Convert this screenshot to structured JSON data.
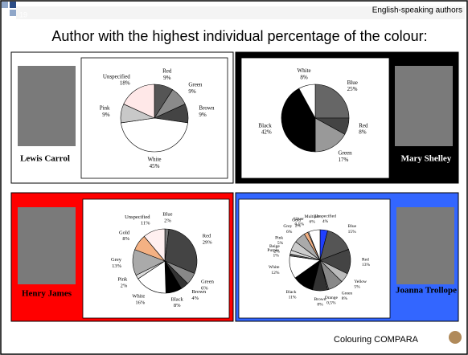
{
  "slide_number": "19",
  "header": "English-speaking authors",
  "title": "Author with the highest individual percentage of the colour:",
  "footer": "Colouring COMPARA",
  "chart_data": [
    {
      "type": "pie",
      "author": "Lewis Carrol",
      "categories": [
        "Red",
        "Green",
        "Brown",
        "White",
        "Pink",
        "Unspecified"
      ],
      "values": [
        9,
        9,
        9,
        45,
        9,
        18
      ],
      "value_labels": [
        "9%",
        "9%",
        "9%",
        "45%",
        "9%",
        "18%"
      ],
      "colors": [
        "#555555",
        "#8a8a8a",
        "#444444",
        "#ffffff",
        "#c8c8c8",
        "#ffe8e8"
      ]
    },
    {
      "type": "pie",
      "author": "Mary Shelley",
      "categories": [
        "Blue",
        "Red",
        "Green",
        "Black",
        "White"
      ],
      "values": [
        25,
        8,
        17,
        42,
        8
      ],
      "value_labels": [
        "25%",
        "8%",
        "17%",
        "42%",
        "8%"
      ],
      "colors": [
        "#666666",
        "#444444",
        "#999999",
        "#000000",
        "#ffffff"
      ]
    },
    {
      "type": "pie",
      "author": "Henry James",
      "categories": [
        "Blue",
        "Red",
        "Green",
        "Brown",
        "Black",
        "White",
        "Pink",
        "Grey",
        "Gold",
        "Unspecified"
      ],
      "values": [
        2,
        29,
        6,
        4,
        8,
        16,
        2,
        13,
        8,
        11
      ],
      "value_labels": [
        "2%",
        "29%",
        "6%",
        "4%",
        "8%",
        "16%",
        "2%",
        "13%",
        "8%",
        "11%"
      ],
      "colors": [
        "#777777",
        "#444444",
        "#888888",
        "#333333",
        "#000000",
        "#ffffff",
        "#dddddd",
        "#aaaaaa",
        "#f4b183",
        "#fff0f0"
      ]
    },
    {
      "type": "pie",
      "author": "Joanna Trollope",
      "categories": [
        "Unspecified",
        "Blue",
        "Red",
        "Yellow",
        "Green",
        "Orange",
        "Brown",
        "Black",
        "White",
        "Purple",
        "Beige",
        "Pink",
        "Grey",
        "Gold",
        "Silver",
        "Multiple"
      ],
      "values": [
        4,
        15,
        13,
        5,
        8,
        0.5,
        8,
        11,
        12,
        1,
        2,
        5,
        6,
        2,
        0.5,
        6
      ],
      "value_labels": [
        "4%",
        "15%",
        "13%",
        "5%",
        "8%",
        "0,5%",
        "8%",
        "11%",
        "12%",
        "1%",
        "2%",
        "5%",
        "6%",
        "2%",
        "0,5%",
        "6%"
      ],
      "colors": [
        "#1f3fff",
        "#555555",
        "#444444",
        "#bbbbbb",
        "#888888",
        "#999999",
        "#333333",
        "#000000",
        "#ffffff",
        "#666666",
        "#dddddd",
        "#cccccc",
        "#aaaaaa",
        "#f4b183",
        "#eeeeee",
        "#ffffff"
      ]
    }
  ]
}
